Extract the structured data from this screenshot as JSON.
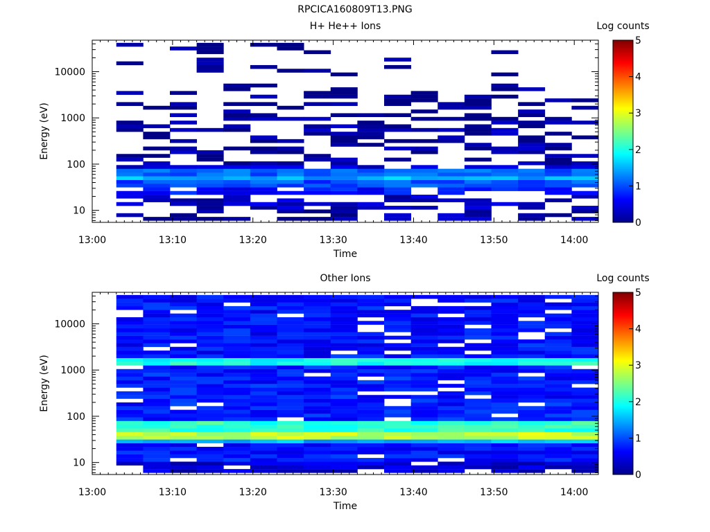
{
  "figure": {
    "title": "RPCICA160809T13.PNG"
  },
  "chart_data": [
    {
      "type": "heatmap",
      "title": "H+ He++ Ions",
      "xlabel": "Time",
      "ylabel": "Energy (eV)",
      "x_ticks": [
        "13:00",
        "13:10",
        "13:20",
        "13:30",
        "13:40",
        "13:50",
        "14:00"
      ],
      "xlim": [
        "13:00",
        "14:03"
      ],
      "y_scale": "log",
      "y_ticks": [
        10,
        100,
        1000,
        10000
      ],
      "ylim": [
        5.5,
        48000
      ],
      "colorbar": {
        "label": "Log counts",
        "range": [
          0,
          5
        ],
        "ticks": [
          0,
          1,
          2,
          3,
          4,
          5
        ]
      },
      "time_start": "13:03",
      "time_end": "14:03",
      "time_bins": 18,
      "description": "Sparse counts above ~100 eV (log counts ~0-0.5, dark blue); bright band 30-80 eV (log counts ~1-1.8); low counts below 30 eV with gaps",
      "profile": [
        {
          "e_min": 6,
          "e_max": 10,
          "mean_log_counts": 0.2,
          "fill": 0.5
        },
        {
          "e_min": 10,
          "e_max": 20,
          "mean_log_counts": 0.3,
          "fill": 0.55
        },
        {
          "e_min": 20,
          "e_max": 30,
          "mean_log_counts": 0.7,
          "fill": 0.8
        },
        {
          "e_min": 30,
          "e_max": 45,
          "mean_log_counts": 1.0,
          "fill": 1.0
        },
        {
          "e_min": 45,
          "e_max": 60,
          "mean_log_counts": 1.5,
          "fill": 1.0
        },
        {
          "e_min": 60,
          "e_max": 80,
          "mean_log_counts": 1.1,
          "fill": 1.0
        },
        {
          "e_min": 80,
          "e_max": 100,
          "mean_log_counts": 0.4,
          "fill": 0.7
        },
        {
          "e_min": 100,
          "e_max": 1000,
          "mean_log_counts": 0.15,
          "fill": 0.45
        },
        {
          "e_min": 1000,
          "e_max": 5000,
          "mean_log_counts": 0.1,
          "fill": 0.3
        },
        {
          "e_min": 5000,
          "e_max": 40000,
          "mean_log_counts": 0.05,
          "fill": 0.12
        }
      ]
    },
    {
      "type": "heatmap",
      "title": "Other Ions",
      "xlabel": "Time",
      "ylabel": "Energy (eV)",
      "x_ticks": [
        "13:00",
        "13:10",
        "13:20",
        "13:30",
        "13:40",
        "13:50",
        "14:00"
      ],
      "xlim": [
        "13:00",
        "14:03"
      ],
      "y_scale": "log",
      "y_ticks": [
        10,
        100,
        1000,
        10000
      ],
      "ylim": [
        5.5,
        48000
      ],
      "colorbar": {
        "label": "Log counts",
        "range": [
          0,
          5
        ],
        "ticks": [
          0,
          1,
          2,
          3,
          4,
          5
        ]
      },
      "time_start": "13:03",
      "time_end": "14:03",
      "time_bins": 18,
      "description": "Broad background 0.5-1 log counts across 10 eV-40 keV; bright bands near 1500 eV (~2) and 30-70 eV (~2.5-3)",
      "profile": [
        {
          "e_min": 6,
          "e_max": 10,
          "mean_log_counts": 0.4,
          "fill": 0.9
        },
        {
          "e_min": 10,
          "e_max": 25,
          "mean_log_counts": 0.7,
          "fill": 0.95
        },
        {
          "e_min": 25,
          "e_max": 30,
          "mean_log_counts": 1.5,
          "fill": 1.0
        },
        {
          "e_min": 30,
          "e_max": 50,
          "mean_log_counts": 2.8,
          "fill": 1.0
        },
        {
          "e_min": 50,
          "e_max": 75,
          "mean_log_counts": 2.1,
          "fill": 1.0
        },
        {
          "e_min": 75,
          "e_max": 1200,
          "mean_log_counts": 0.75,
          "fill": 0.92
        },
        {
          "e_min": 1200,
          "e_max": 2000,
          "mean_log_counts": 2.0,
          "fill": 1.0
        },
        {
          "e_min": 2000,
          "e_max": 42000,
          "mean_log_counts": 0.7,
          "fill": 0.9
        }
      ]
    }
  ]
}
